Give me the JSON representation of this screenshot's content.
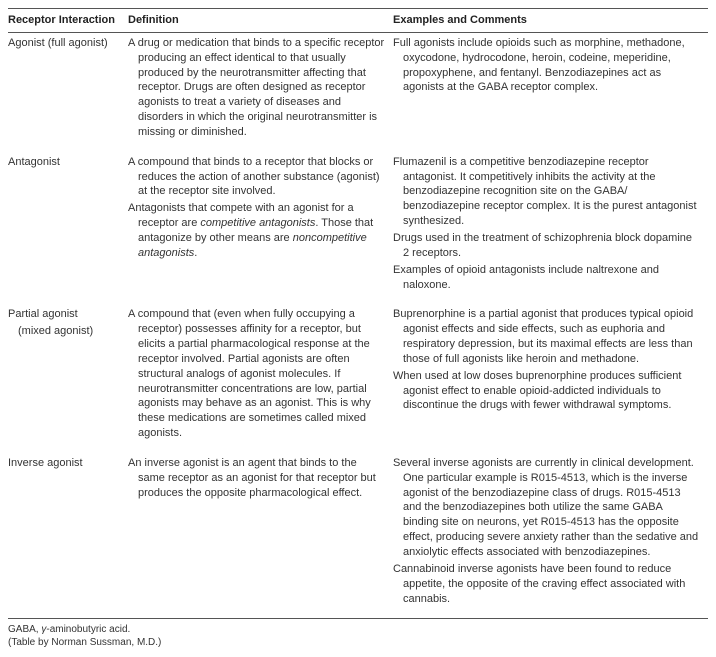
{
  "headers": {
    "col1": "Receptor Interaction",
    "col2": "Definition",
    "col3": "Examples and Comments"
  },
  "rows": [
    {
      "term_lines": [
        "Agonist (full agonist)"
      ],
      "definition": [
        "A drug or medication that binds to a specific receptor producing an effect identical to that usually produced by the neurotransmitter affecting that receptor. Drugs are often designed as receptor agonists to treat a variety of diseases and disorders in which the original neurotransmitter is missing or diminished."
      ],
      "examples": [
        "Full agonists include opioids such as morphine, methadone, oxycodone, hydrocodone, heroin, codeine, meperidine, propoxyphene, and fentanyl. Benzodiazepines act as agonists at the GABA receptor complex."
      ]
    },
    {
      "term_lines": [
        "Antagonist"
      ],
      "definition": [
        "A compound that binds to a receptor that blocks or reduces the action of another substance (agonist) at the receptor site involved.",
        "Antagonists that compete with an agonist for a receptor are <em>competitive antagonists</em>. Those that antagonize by other means are <em>noncompetitive antagonists</em>."
      ],
      "examples": [
        "Flumazenil is a competitive benzodiazepine receptor antagonist. It competitively inhibits the activity at the benzodiazepine recognition site on the GABA/ benzodiazepine receptor complex. It is the purest antagonist synthesized.",
        "Drugs used in the treatment of schizophrenia block dopamine 2 receptors.",
        "Examples of opioid antagonists include naltrexone and naloxone."
      ]
    },
    {
      "term_lines": [
        "Partial agonist",
        "(mixed agonist)"
      ],
      "definition": [
        "A compound that (even when fully occupying a receptor) possesses affinity for a receptor, but elicits a partial pharmacological response at the receptor involved. Partial agonists are often structural analogs of agonist molecules. If neurotransmitter concentrations are low, partial agonists may behave as an agonist. This is why these medications are sometimes called mixed agonists."
      ],
      "examples": [
        "Buprenorphine is a partial agonist that produces typical opioid agonist effects and side effects, such as euphoria and respiratory depression, but its maximal effects are less than those of full agonists like heroin and methadone.",
        "When used at low doses buprenorphine produces sufficient agonist effect to enable opioid-addicted individuals to discontinue the drugs with fewer withdrawal symptoms."
      ]
    },
    {
      "term_lines": [
        "Inverse agonist"
      ],
      "definition": [
        "An inverse agonist is an agent that binds to the same receptor as an agonist for that receptor but produces the opposite pharmacological effect."
      ],
      "examples": [
        "Several inverse agonists are currently in clinical development. One particular example is R015-4513, which is the inverse agonist of the benzodiazepine class of drugs. R015-4513 and the benzodiazepines both utilize the same GABA binding site on neurons, yet R015-4513 has the opposite effect, producing severe anxiety rather than the sedative and anxiolytic effects associated with benzodiazepines.",
        "Cannabinoid inverse agonists have been found to reduce appetite, the opposite of the craving effect associated with cannabis."
      ]
    }
  ],
  "footnote": {
    "line1_html": "GABA, <em>γ</em>-aminobutyric acid.",
    "line2": "(Table by Norman Sussman, M.D.)"
  }
}
